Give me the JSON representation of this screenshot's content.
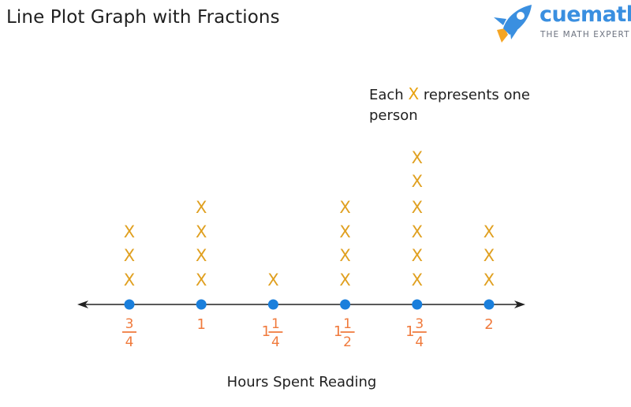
{
  "header": {
    "title": "Line Plot Graph with Fractions"
  },
  "logo": {
    "name": "cuemath",
    "tagline": "THE MATH EXPERT"
  },
  "legend": {
    "prefix": "Each",
    "symbol": "X",
    "suffix": "represents one person"
  },
  "colors": {
    "marks": "#e0a020",
    "ticks": "#f07a3c",
    "dots": "#1a7fdc",
    "axis": "#222222"
  },
  "chart_data": {
    "type": "scatter",
    "xlabel": "Hours Spent Reading",
    "ylabel": "",
    "mark": "X",
    "categories": [
      "3/4",
      "1",
      "1 1/4",
      "1 1/2",
      "1 3/4",
      "2"
    ],
    "tick_labels": [
      {
        "whole": "",
        "num": "3",
        "den": "4"
      },
      {
        "whole": "1",
        "num": "",
        "den": ""
      },
      {
        "whole": "1",
        "num": "1",
        "den": "4"
      },
      {
        "whole": "1",
        "num": "1",
        "den": "2"
      },
      {
        "whole": "1",
        "num": "3",
        "den": "4"
      },
      {
        "whole": "2",
        "num": "",
        "den": ""
      }
    ],
    "x": [
      0.75,
      1.0,
      1.25,
      1.5,
      1.75,
      2.0
    ],
    "values": [
      3,
      4,
      1,
      4,
      6,
      3
    ]
  }
}
